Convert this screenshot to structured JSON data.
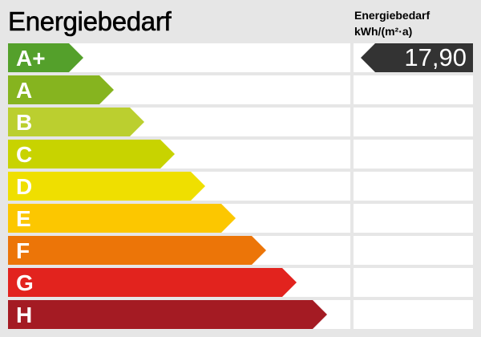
{
  "title": "Energiebedarf",
  "unit_label": {
    "line1": "Energiebedarf",
    "line2": "kWh/(m²·a)"
  },
  "classes": [
    {
      "label": "A+",
      "color": "#54a02b"
    },
    {
      "label": "A",
      "color": "#86b41f"
    },
    {
      "label": "B",
      "color": "#bbcf2f"
    },
    {
      "label": "C",
      "color": "#c8d300"
    },
    {
      "label": "D",
      "color": "#efdf00"
    },
    {
      "label": "E",
      "color": "#fcc700"
    },
    {
      "label": "F",
      "color": "#ec7508"
    },
    {
      "label": "G",
      "color": "#e2231e"
    },
    {
      "label": "H",
      "color": "#a41b23"
    }
  ],
  "indicator": {
    "value": "17,90",
    "class": "A+",
    "color": "#333333"
  }
}
